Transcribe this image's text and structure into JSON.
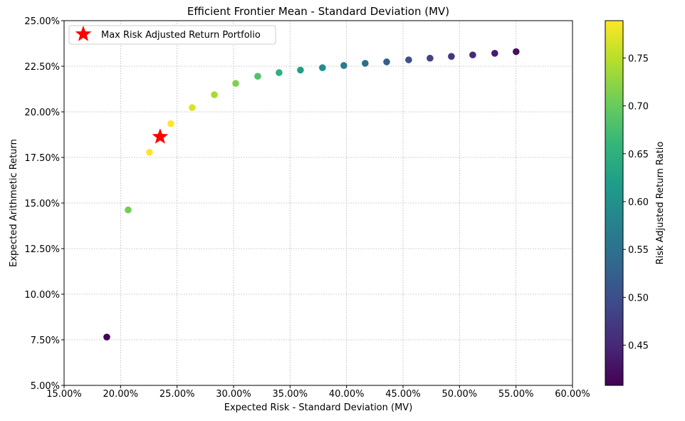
{
  "chart_data": {
    "type": "scatter",
    "title": "Efficient Frontier Mean - Standard Deviation (MV)",
    "xlabel": "Expected Risk - Standard Deviation (MV)",
    "ylabel": "Expected Arithmetic Return",
    "xlim": [
      0.15,
      0.6
    ],
    "ylim": [
      0.05,
      0.25
    ],
    "xticks": [
      0.15,
      0.2,
      0.25,
      0.3,
      0.35,
      0.4,
      0.45,
      0.5,
      0.55,
      0.6
    ],
    "xtick_labels": [
      "15.00%",
      "20.00%",
      "25.00%",
      "30.00%",
      "35.00%",
      "40.00%",
      "45.00%",
      "50.00%",
      "55.00%",
      "60.00%"
    ],
    "yticks": [
      0.05,
      0.075,
      0.1,
      0.125,
      0.15,
      0.175,
      0.2,
      0.225,
      0.25
    ],
    "ytick_labels": [
      "5.00%",
      "7.50%",
      "10.00%",
      "12.50%",
      "15.00%",
      "17.50%",
      "20.00%",
      "22.50%",
      "25.00%"
    ],
    "grid": true,
    "legend": {
      "placement": "top-left",
      "entries": [
        "Max Risk Adjusted Return Portfolio"
      ]
    },
    "series": [
      {
        "name": "Efficient Frontier",
        "x": [
          0.1878,
          0.2067,
          0.2256,
          0.2445,
          0.2634,
          0.283,
          0.3019,
          0.3214,
          0.3403,
          0.3592,
          0.3787,
          0.3976,
          0.4165,
          0.4355,
          0.455,
          0.4739,
          0.4928,
          0.5117,
          0.5312,
          0.5501
        ],
        "y": [
          0.0765,
          0.1462,
          0.1778,
          0.1935,
          0.2023,
          0.2094,
          0.2156,
          0.2195,
          0.2215,
          0.2229,
          0.2242,
          0.2254,
          0.2266,
          0.2274,
          0.2285,
          0.2294,
          0.2304,
          0.2312,
          0.2321,
          0.233
        ],
        "ratio": [
          0.408,
          0.707,
          0.788,
          0.789,
          0.768,
          0.74,
          0.714,
          0.683,
          0.651,
          0.621,
          0.592,
          0.567,
          0.544,
          0.522,
          0.502,
          0.484,
          0.468,
          0.452,
          0.437,
          0.424
        ]
      }
    ],
    "highlight": {
      "name": "Max Risk Adjusted Return Portfolio",
      "x": 0.235,
      "y": 0.1863,
      "color": "#ff0000",
      "marker": "star"
    },
    "colorbar": {
      "label": "Risk Adjusted Return Ratio",
      "range": [
        0.408,
        0.789
      ],
      "ticks": [
        0.45,
        0.5,
        0.55,
        0.6,
        0.65,
        0.7,
        0.75
      ],
      "tick_labels": [
        "0.45",
        "0.50",
        "0.55",
        "0.60",
        "0.65",
        "0.70",
        "0.75"
      ],
      "colormap": "viridis"
    }
  }
}
